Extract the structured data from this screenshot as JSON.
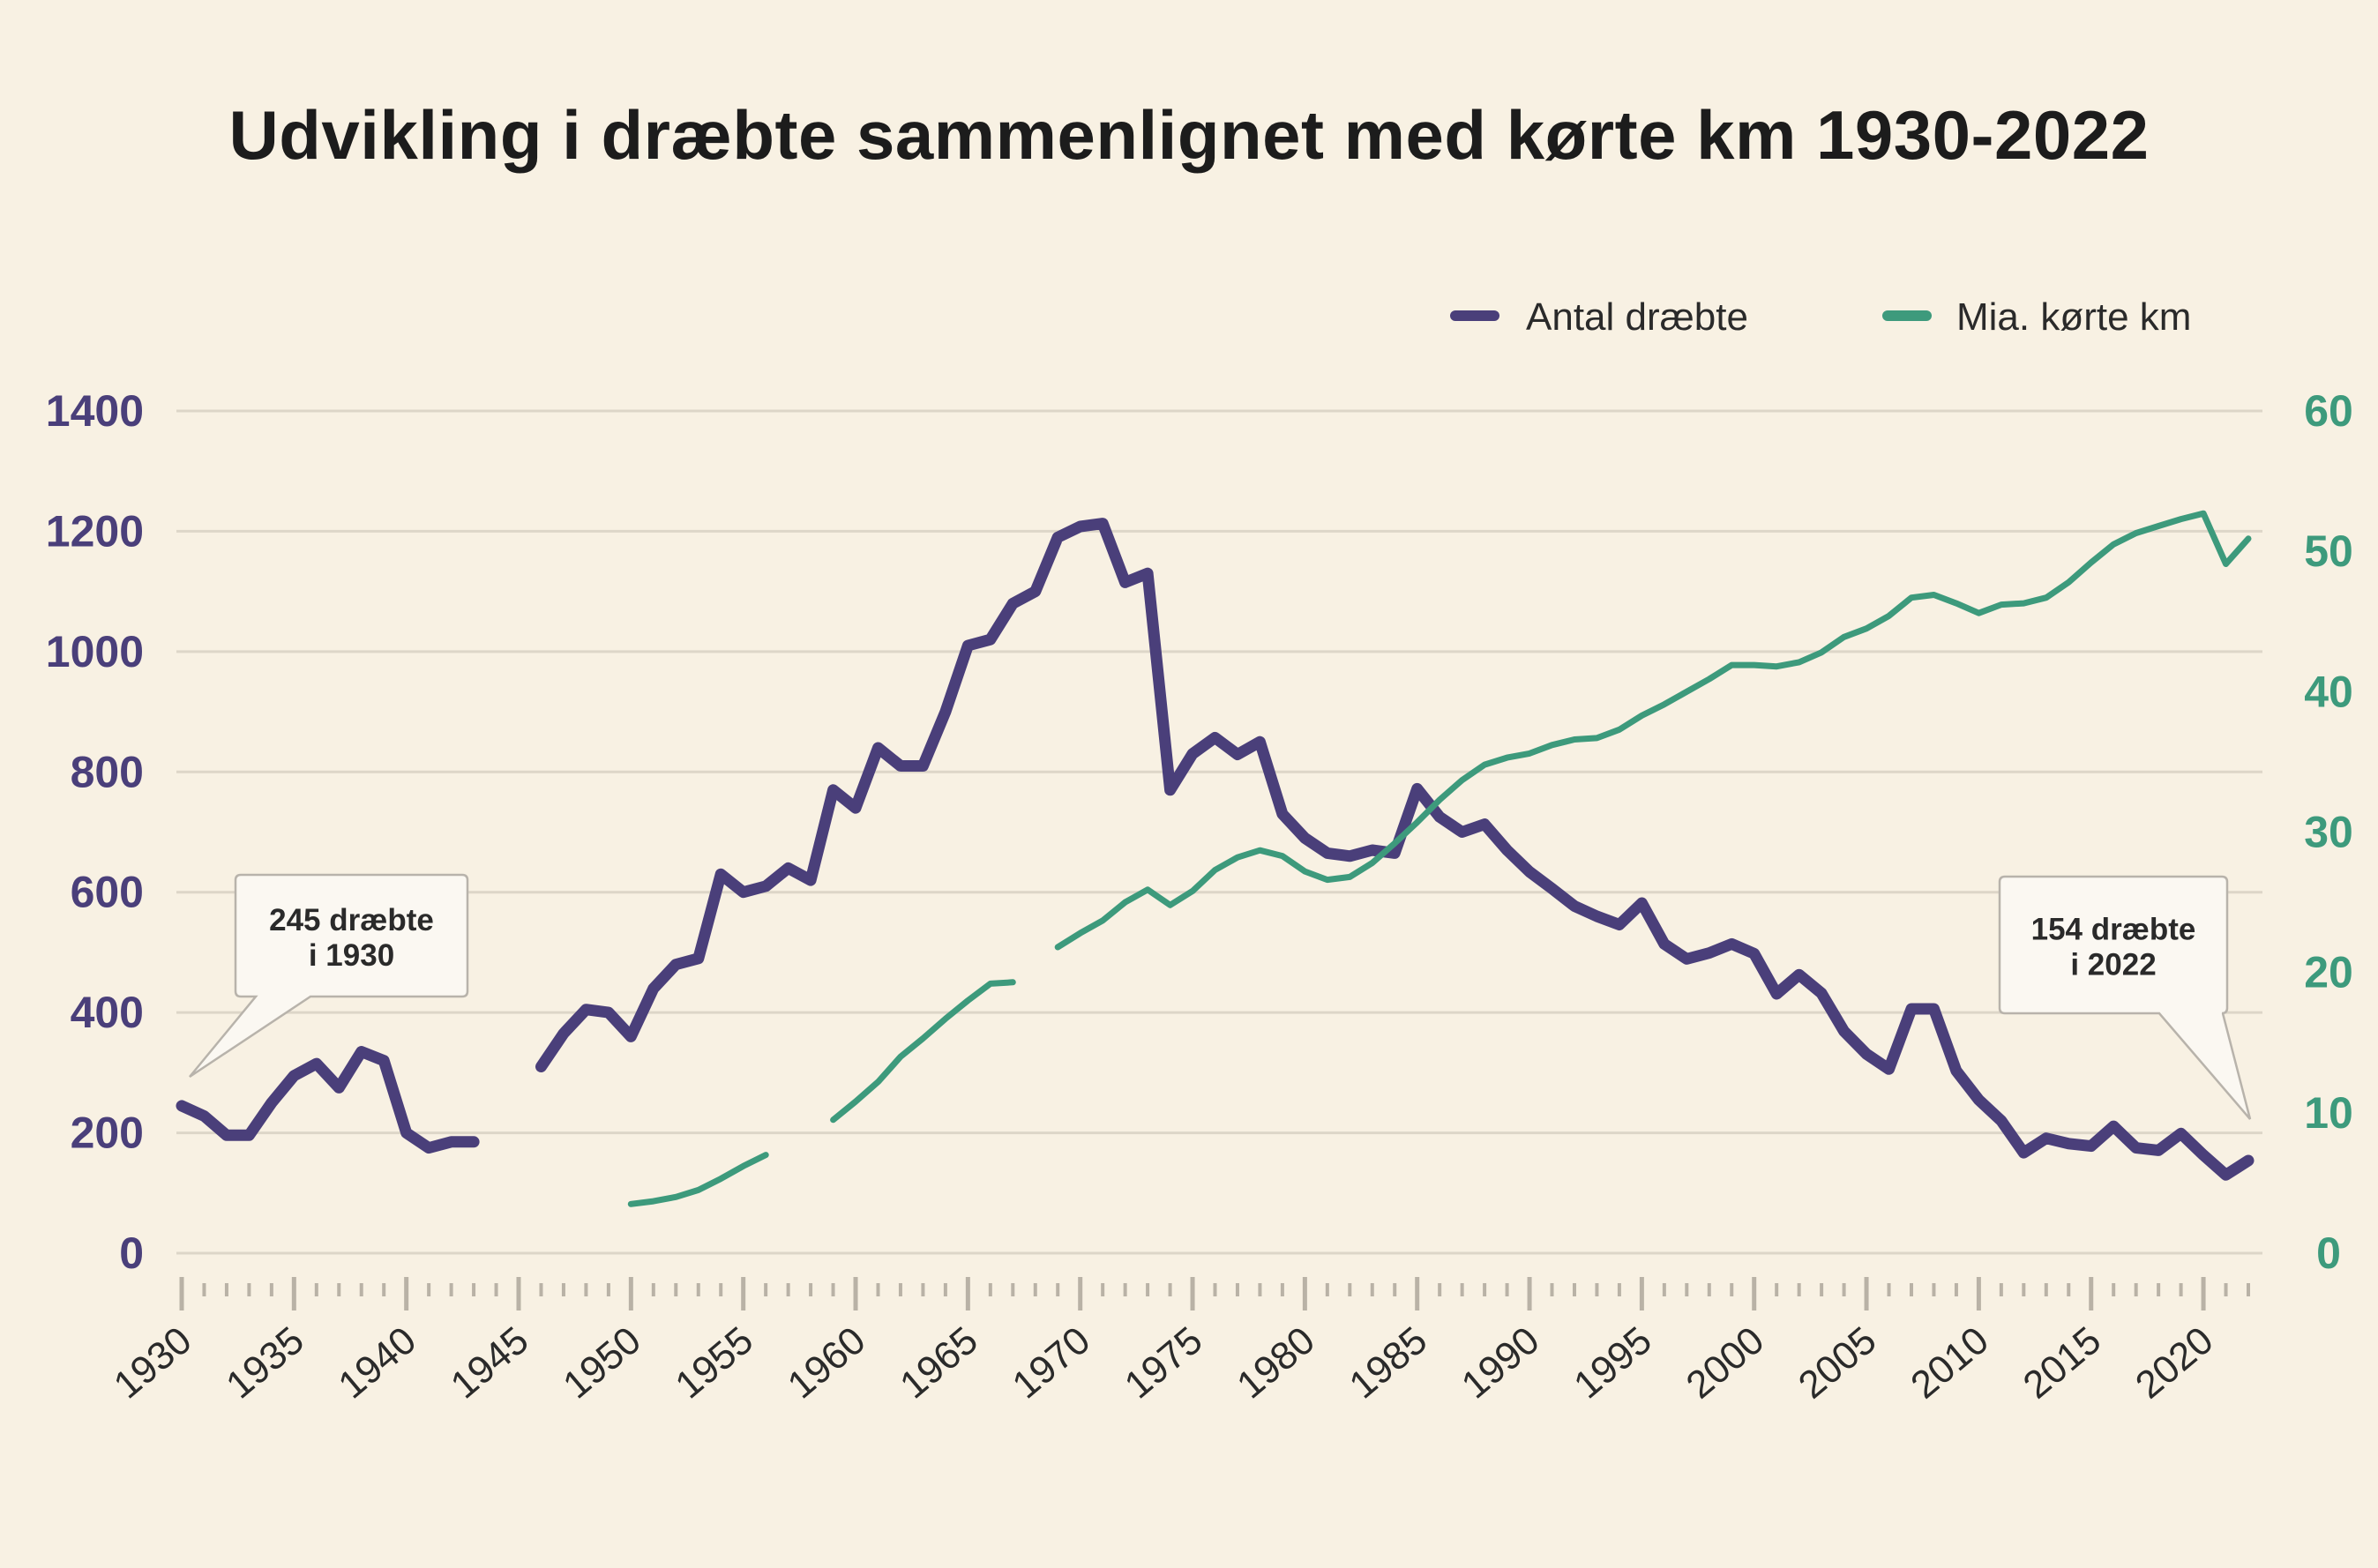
{
  "chart_data": {
    "type": "line",
    "title": "Udvikling i dræbte sammenlignet med kørte km 1930-2022",
    "legend_position": "top-right",
    "grid": true,
    "x": [
      1930,
      1931,
      1932,
      1933,
      1934,
      1935,
      1936,
      1937,
      1938,
      1939,
      1940,
      1941,
      1942,
      1943,
      1944,
      1945,
      1946,
      1947,
      1948,
      1949,
      1950,
      1951,
      1952,
      1953,
      1954,
      1955,
      1956,
      1957,
      1958,
      1959,
      1960,
      1961,
      1962,
      1963,
      1964,
      1965,
      1966,
      1967,
      1968,
      1969,
      1970,
      1971,
      1972,
      1973,
      1974,
      1975,
      1976,
      1977,
      1978,
      1979,
      1980,
      1981,
      1982,
      1983,
      1984,
      1985,
      1986,
      1987,
      1988,
      1989,
      1990,
      1991,
      1992,
      1993,
      1994,
      1995,
      1996,
      1997,
      1998,
      1999,
      2000,
      2001,
      2002,
      2003,
      2004,
      2005,
      2006,
      2007,
      2008,
      2009,
      2010,
      2011,
      2012,
      2013,
      2014,
      2015,
      2016,
      2017,
      2018,
      2019,
      2020,
      2021,
      2022
    ],
    "xlim": [
      1930,
      2022
    ],
    "xticks": [
      "1930",
      "1935",
      "1940",
      "1945",
      "1950",
      "1955",
      "1960",
      "1965",
      "1970",
      "1975",
      "1980",
      "1985",
      "1990",
      "1995",
      "2000",
      "2005",
      "2010",
      "2015",
      "2020"
    ],
    "y_left": {
      "lim": [
        0,
        1400
      ],
      "ticks": [
        "0",
        "200",
        "400",
        "600",
        "800",
        "1000",
        "1200",
        "1400"
      ],
      "color": "#4a3f7a"
    },
    "y_right": {
      "lim": [
        0,
        60
      ],
      "ticks": [
        "0",
        "10",
        "20",
        "30",
        "40",
        "50",
        "60"
      ],
      "color": "#3d9a7c"
    },
    "series": [
      {
        "name": "Antal dræbte",
        "axis": "left",
        "color": "#4a3f7a",
        "values": [
          245,
          228,
          196,
          196,
          250,
          295,
          315,
          275,
          335,
          320,
          200,
          175,
          185,
          185,
          null,
          null,
          310,
          365,
          405,
          400,
          360,
          440,
          480,
          490,
          630,
          600,
          610,
          640,
          620,
          770,
          740,
          840,
          810,
          810,
          900,
          1010,
          1020,
          1080,
          1100,
          1190,
          1208,
          1213,
          1115,
          1130,
          770,
          830,
          857,
          829,
          850,
          730,
          690,
          665,
          660,
          670,
          665,
          772,
          725,
          700,
          713,
          670,
          634,
          606,
          577,
          560,
          546,
          582,
          514,
          489,
          499,
          514,
          498,
          431,
          463,
          432,
          369,
          331,
          306,
          406,
          406,
          303,
          255,
          220,
          167,
          191,
          182,
          178,
          211,
          175,
          171,
          199,
          163,
          130,
          154
        ]
      },
      {
        "name": "Mia. kørte km",
        "axis": "right",
        "color": "#3d9a7c",
        "values": [
          null,
          null,
          null,
          null,
          null,
          null,
          null,
          null,
          null,
          null,
          null,
          null,
          null,
          null,
          null,
          null,
          null,
          null,
          null,
          null,
          3.5,
          3.7,
          4.0,
          4.5,
          5.3,
          6.2,
          7.0,
          null,
          null,
          9.5,
          10.8,
          12.2,
          14.0,
          15.3,
          16.7,
          18.0,
          19.2,
          19.3,
          null,
          21.8,
          22.8,
          23.7,
          25.0,
          25.9,
          24.8,
          25.8,
          27.3,
          28.2,
          28.7,
          28.3,
          27.2,
          26.6,
          26.8,
          27.8,
          29.2,
          30.7,
          32.3,
          33.7,
          34.8,
          35.3,
          35.6,
          36.2,
          36.6,
          36.7,
          37.3,
          38.3,
          39.1,
          40.0,
          40.9,
          41.9,
          41.9,
          41.8,
          42.1,
          42.8,
          43.9,
          44.5,
          45.4,
          46.7,
          46.9,
          46.3,
          45.6,
          46.2,
          46.3,
          46.7,
          47.8,
          49.2,
          50.5,
          51.3,
          51.8,
          52.3,
          52.7,
          49.1,
          50.9
        ]
      }
    ],
    "annotations": [
      {
        "line1": "245 dræbte",
        "line2": "i 1930",
        "x": 1930
      },
      {
        "line1": "154 dræbte",
        "line2": "i 2022",
        "x": 2022
      }
    ]
  },
  "colors": {
    "background": "#f8f1e3",
    "grid": "#ddd6c8"
  }
}
